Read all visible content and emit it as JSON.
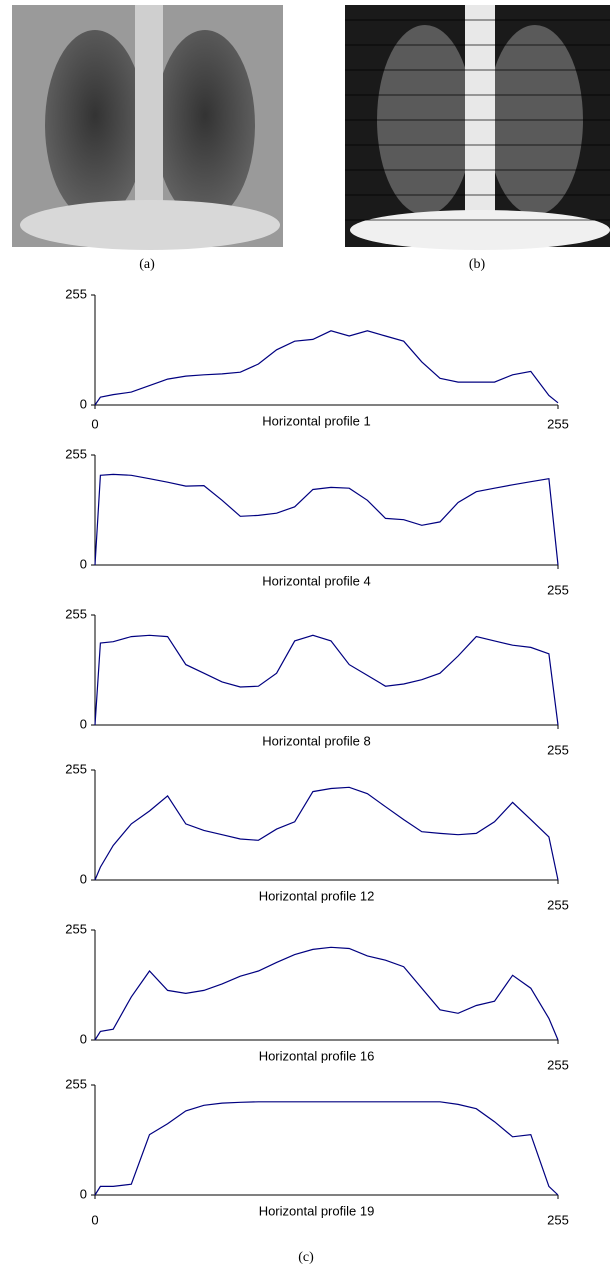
{
  "captions": [
    "(a)",
    "(b)",
    "(c)"
  ],
  "chart_data": [
    {
      "type": "line",
      "xlabel": "Horizontal profile 1",
      "color": "#000080",
      "xlim": [
        0,
        255
      ],
      "ylim": [
        0,
        255
      ],
      "xticks": [
        0,
        255
      ],
      "yticks": [
        0,
        255
      ],
      "x": [
        0,
        3,
        10,
        20,
        30,
        40,
        50,
        60,
        70,
        80,
        90,
        100,
        110,
        120,
        130,
        140,
        150,
        160,
        170,
        180,
        190,
        200,
        210,
        220,
        230,
        240,
        250,
        255
      ],
      "values": [
        0,
        18,
        24,
        30,
        45,
        60,
        67,
        70,
        72,
        76,
        95,
        128,
        148,
        152,
        172,
        160,
        172,
        160,
        148,
        100,
        62,
        53,
        53,
        53,
        70,
        78,
        22,
        5
      ]
    },
    {
      "type": "line",
      "xlabel": "Horizontal profile 4",
      "color": "#000080",
      "xlim": [
        0,
        255
      ],
      "ylim": [
        0,
        255
      ],
      "xticks": [
        255
      ],
      "yticks": [
        0,
        255
      ],
      "x": [
        0,
        3,
        10,
        20,
        30,
        40,
        50,
        60,
        70,
        80,
        90,
        100,
        110,
        120,
        130,
        140,
        150,
        160,
        170,
        180,
        190,
        200,
        210,
        220,
        230,
        240,
        250,
        255
      ],
      "values": [
        0,
        208,
        210,
        208,
        200,
        192,
        183,
        184,
        150,
        113,
        115,
        120,
        135,
        175,
        180,
        178,
        150,
        108,
        105,
        92,
        100,
        145,
        170,
        178,
        186,
        193,
        200,
        0
      ]
    },
    {
      "type": "line",
      "xlabel": "Horizontal profile 8",
      "color": "#000080",
      "xlim": [
        0,
        255
      ],
      "ylim": [
        0,
        255
      ],
      "xticks": [
        255
      ],
      "yticks": [
        0,
        255
      ],
      "x": [
        0,
        3,
        10,
        20,
        30,
        40,
        50,
        60,
        70,
        80,
        90,
        100,
        110,
        120,
        130,
        140,
        150,
        160,
        170,
        180,
        190,
        200,
        210,
        220,
        230,
        240,
        250,
        255
      ],
      "values": [
        0,
        190,
        193,
        205,
        208,
        205,
        140,
        120,
        100,
        88,
        90,
        120,
        195,
        208,
        195,
        140,
        115,
        90,
        95,
        105,
        120,
        160,
        205,
        195,
        185,
        180,
        165,
        0
      ]
    },
    {
      "type": "line",
      "xlabel": "Horizontal profile 12",
      "color": "#000080",
      "xlim": [
        0,
        255
      ],
      "ylim": [
        0,
        255
      ],
      "xticks": [
        255
      ],
      "yticks": [
        0,
        255
      ],
      "x": [
        0,
        3,
        10,
        20,
        30,
        40,
        50,
        60,
        70,
        80,
        90,
        100,
        110,
        120,
        130,
        140,
        150,
        160,
        170,
        180,
        190,
        200,
        210,
        220,
        230,
        240,
        250,
        255
      ],
      "values": [
        0,
        30,
        80,
        130,
        160,
        195,
        130,
        115,
        105,
        95,
        92,
        118,
        135,
        205,
        212,
        215,
        200,
        170,
        140,
        112,
        108,
        105,
        108,
        135,
        180,
        140,
        100,
        0
      ]
    },
    {
      "type": "line",
      "xlabel": "Horizontal profile 16",
      "color": "#000080",
      "xlim": [
        0,
        255
      ],
      "ylim": [
        0,
        255
      ],
      "xticks": [
        255
      ],
      "yticks": [
        0,
        255
      ],
      "x": [
        0,
        3,
        10,
        20,
        30,
        40,
        50,
        60,
        70,
        80,
        90,
        100,
        110,
        120,
        130,
        140,
        150,
        160,
        170,
        180,
        190,
        200,
        210,
        220,
        230,
        240,
        250,
        255
      ],
      "values": [
        0,
        20,
        25,
        100,
        160,
        115,
        108,
        115,
        130,
        148,
        160,
        180,
        198,
        210,
        215,
        212,
        195,
        185,
        170,
        120,
        70,
        62,
        80,
        90,
        150,
        120,
        50,
        0
      ]
    },
    {
      "type": "line",
      "xlabel": "Horizontal profile 19",
      "color": "#000080",
      "xlim": [
        0,
        255
      ],
      "ylim": [
        0,
        255
      ],
      "xticks": [
        0,
        255
      ],
      "yticks": [
        0,
        255
      ],
      "x": [
        0,
        3,
        10,
        20,
        30,
        40,
        50,
        60,
        70,
        80,
        90,
        100,
        110,
        120,
        130,
        140,
        150,
        160,
        170,
        180,
        190,
        200,
        210,
        220,
        230,
        240,
        250,
        255
      ],
      "values": [
        0,
        20,
        20,
        25,
        140,
        165,
        195,
        208,
        213,
        215,
        216,
        216,
        216,
        216,
        216,
        216,
        216,
        216,
        216,
        216,
        216,
        210,
        200,
        170,
        135,
        140,
        20,
        0
      ]
    }
  ]
}
